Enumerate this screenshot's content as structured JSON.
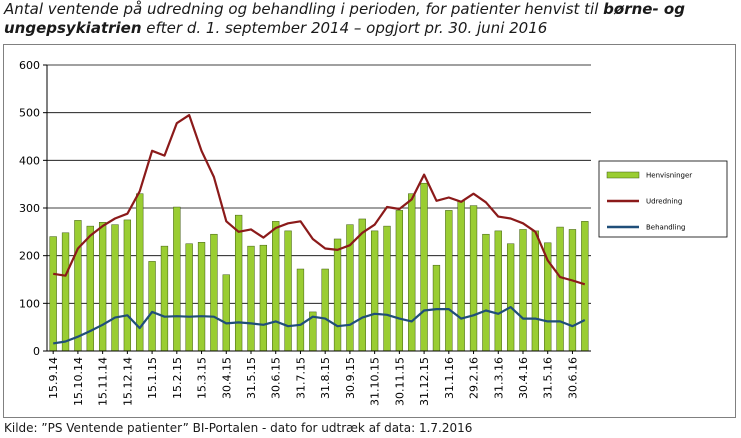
{
  "title": {
    "part1": "Antal ventende på udredning og behandling i perioden, for patienter henvist til ",
    "part2_bold": "børne- og ungepsykiatrien",
    "part3": " efter d. 1. september 2014 – opgjort pr. 30. juni 2016"
  },
  "source": "Kilde: ”PS Ventende patienter” BI-Portalen - dato for udtræk af data: 1.7.2016",
  "colors": {
    "henvisninger": "#9ACD32",
    "henvisninger_border": "#3f5a12",
    "udredning": "#8B1A1A",
    "behandling": "#1F4E79",
    "grid": "#000000",
    "axis": "#000000"
  },
  "chart_data": {
    "type": "bar",
    "ylim": [
      0,
      600
    ],
    "yticks": [
      "0",
      "100",
      "200",
      "300",
      "400",
      "500",
      "600"
    ],
    "ytick_values": [
      0,
      100,
      200,
      300,
      400,
      500,
      600
    ],
    "grid": true,
    "legend_position": "right",
    "x_tick_labels": [
      "15.9.14",
      "15.10.14",
      "15.11.14",
      "15.12.14",
      "15.1.15",
      "15.2.15",
      "15.3.15",
      "30.4.15",
      "31.5.15",
      "30.6.15",
      "31.7.15",
      "31.8.15",
      "30.9.15",
      "31.10.15",
      "30.11.15",
      "31.12.15",
      "31.1.16",
      "29.2.16",
      "31.3.16",
      "30.4.16",
      "31.5.16",
      "30.6.16"
    ],
    "series": [
      {
        "name": "Henvisninger",
        "kind": "bar",
        "values": [
          240,
          248,
          274,
          262,
          270,
          265,
          275,
          330,
          188,
          220,
          302,
          225,
          228,
          245,
          160,
          285,
          220,
          222,
          272,
          252,
          172,
          82,
          172,
          235,
          265,
          277,
          252,
          262,
          295,
          330,
          352,
          180,
          295,
          315,
          305,
          245,
          252,
          225,
          255,
          252,
          227,
          260,
          255,
          272
        ]
      },
      {
        "name": "Udredning",
        "kind": "line",
        "values": [
          162,
          158,
          215,
          242,
          262,
          278,
          288,
          335,
          420,
          410,
          478,
          495,
          420,
          365,
          272,
          250,
          255,
          238,
          258,
          268,
          272,
          235,
          215,
          212,
          222,
          248,
          265,
          302,
          298,
          318,
          370,
          315,
          322,
          313,
          330,
          312,
          282,
          278,
          268,
          250,
          190,
          155,
          148,
          140
        ]
      },
      {
        "name": "Behandling",
        "kind": "line",
        "values": [
          16,
          20,
          30,
          42,
          55,
          70,
          75,
          48,
          82,
          72,
          73,
          72,
          73,
          72,
          58,
          60,
          58,
          55,
          62,
          52,
          55,
          72,
          68,
          52,
          55,
          70,
          78,
          76,
          68,
          62,
          85,
          88,
          88,
          68,
          75,
          85,
          78,
          92,
          68,
          68,
          62,
          62,
          52,
          65
        ]
      }
    ]
  }
}
